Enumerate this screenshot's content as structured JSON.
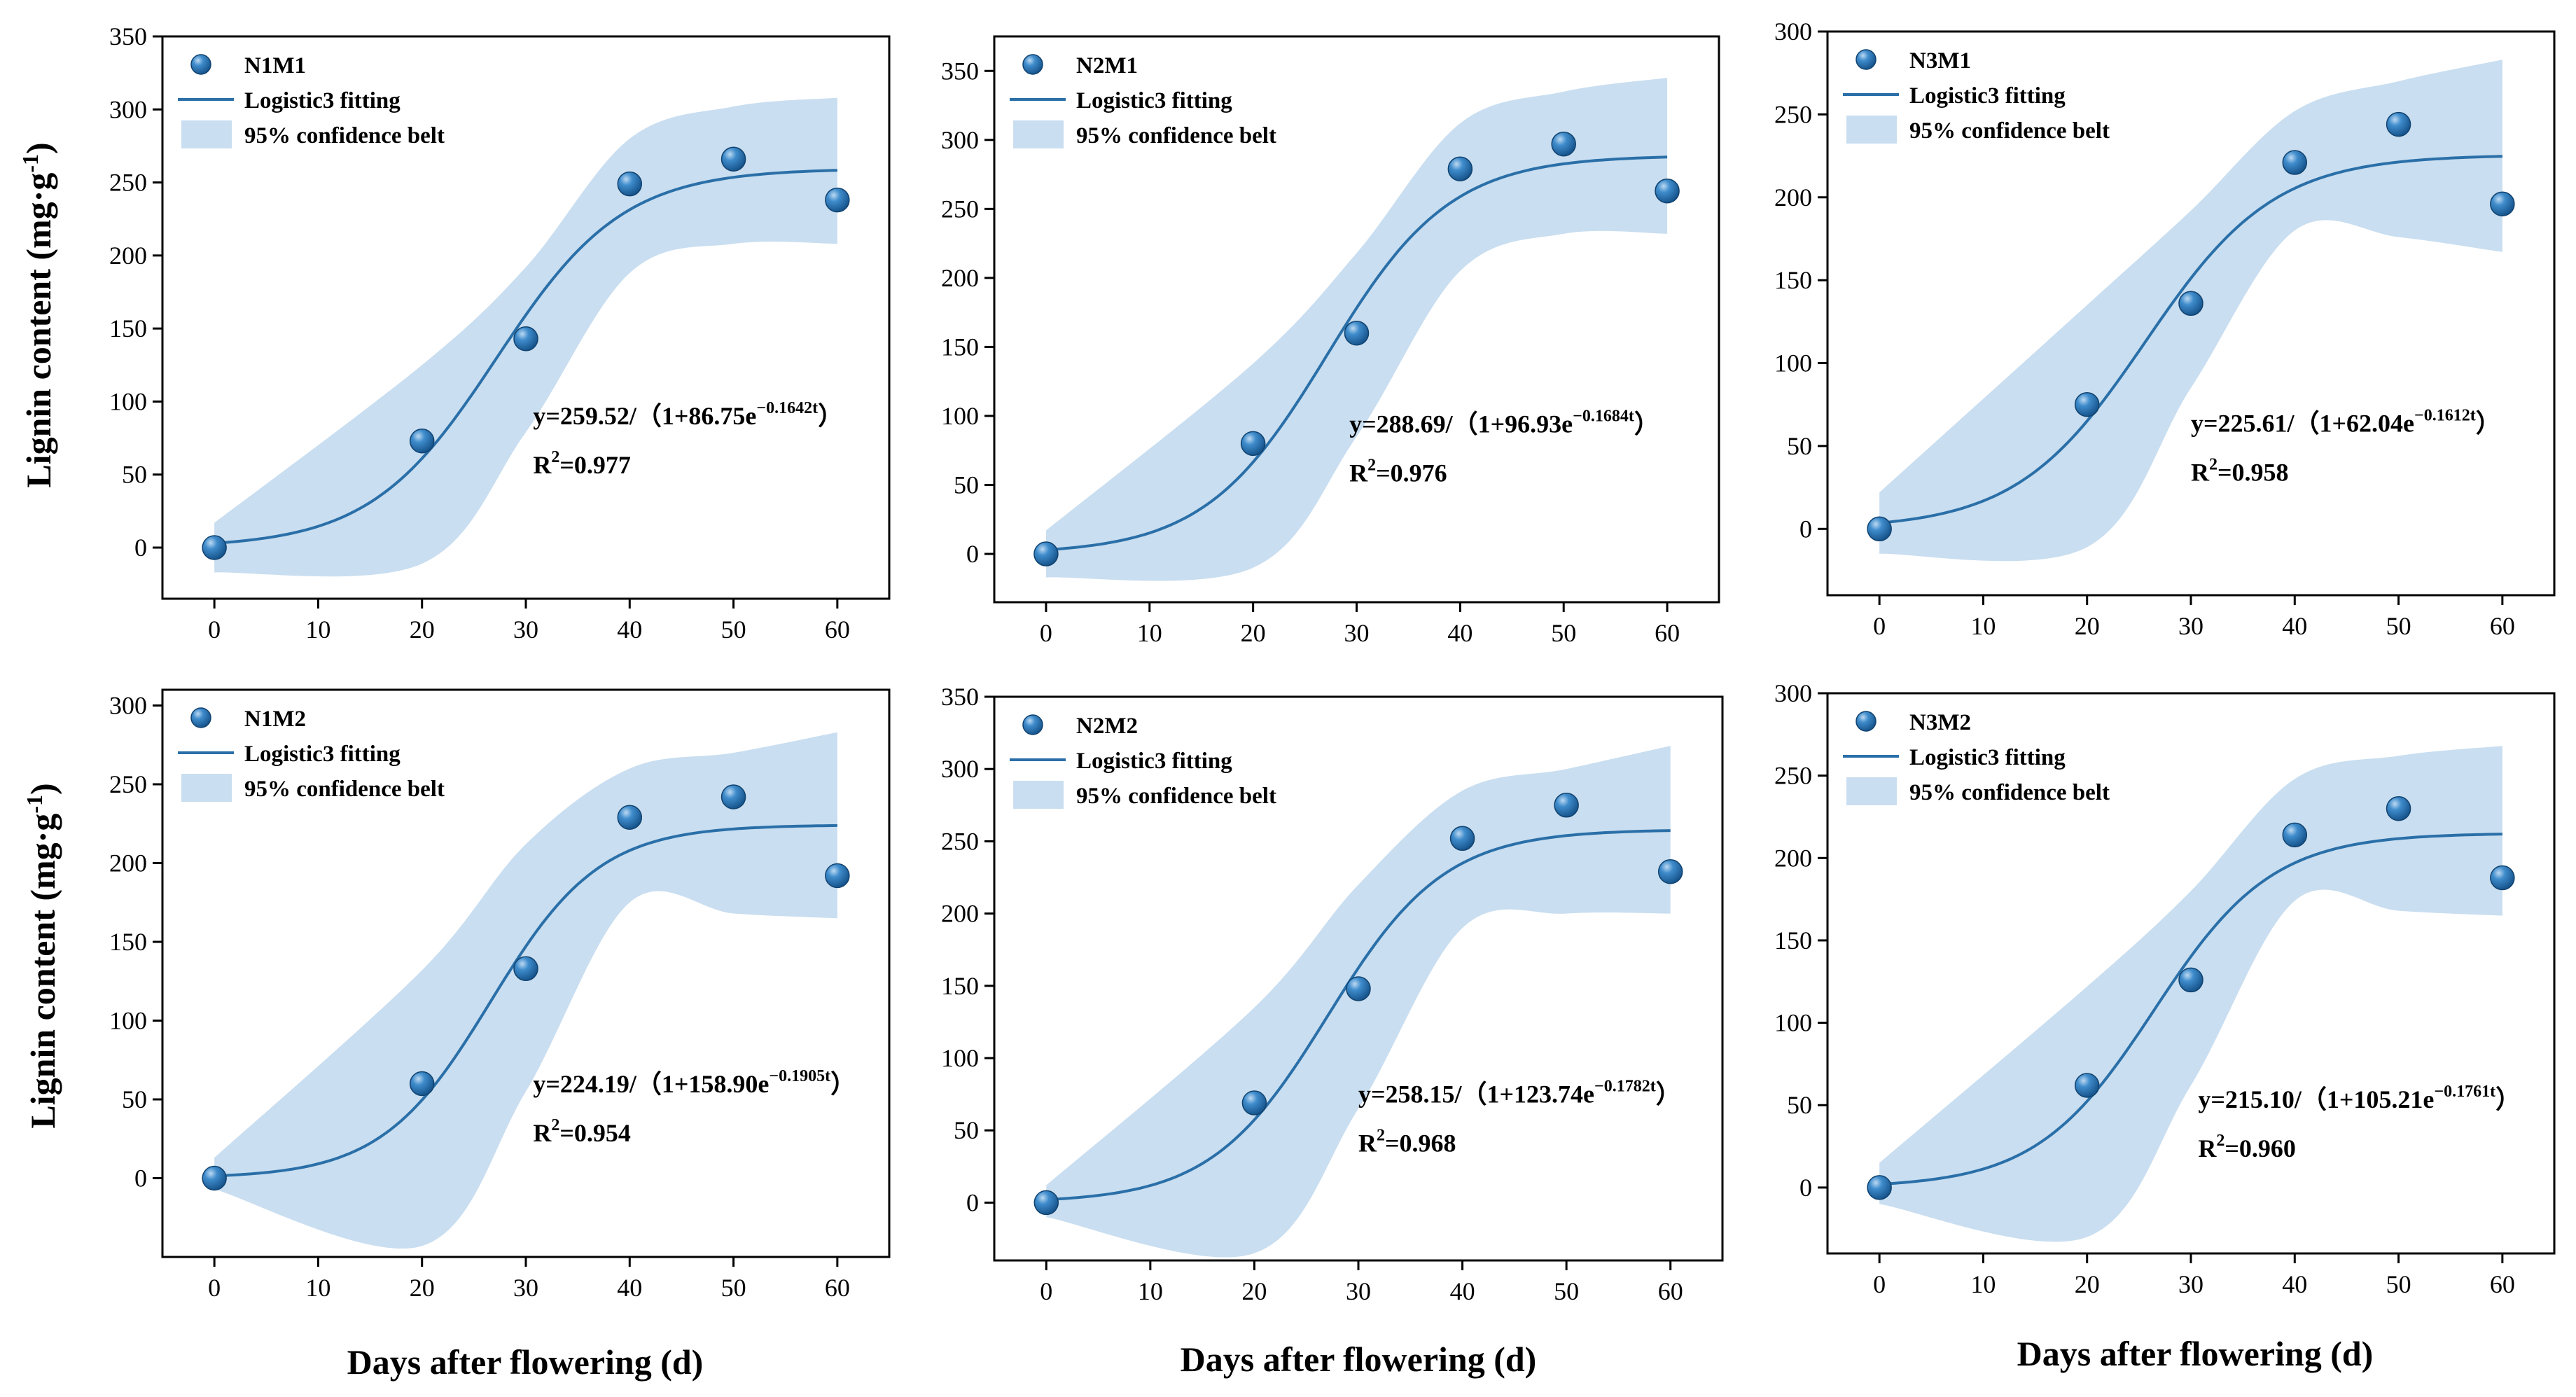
{
  "figure": {
    "xlabel": "Days after flowering (d)",
    "ylabel_main": "Lignin content (mg·g",
    "ylabel_sup": "-1",
    "ylabel_close": ")"
  },
  "colors": {
    "point": "#1f6fb0",
    "point_highlight": "#9cc4e6",
    "fit_line": "#2a6fa8",
    "band": "#c9def0",
    "axis": "#000000"
  },
  "legend": {
    "fit_label": "Logistic3 fitting",
    "band_label": "95% confidence belt"
  },
  "chart_data": [
    {
      "type": "scatter",
      "name": "N1M1",
      "x": [
        0,
        20,
        30,
        40,
        50,
        60
      ],
      "y": [
        0,
        73,
        143,
        249,
        266,
        238
      ],
      "fit": {
        "A": 259.52,
        "B": 86.75,
        "k": 0.1642
      },
      "band": {
        "lower": [
          -17,
          -11,
          79,
          188,
          208,
          208
        ],
        "upper": [
          17,
          125,
          192,
          280,
          302,
          308
        ]
      },
      "equation": "y=259.52/（1+86.75e",
      "exponent": "−0.1642t",
      "eq_close": "）",
      "r2_prefix": "R",
      "r2_sup": "2",
      "r2_value": "=0.977",
      "xticks": [
        0,
        10,
        20,
        30,
        40,
        50,
        60
      ],
      "yticks": [
        0,
        50,
        100,
        150,
        200,
        250,
        300,
        350
      ],
      "ylim": [
        -35,
        350
      ],
      "xlim": [
        -5,
        65
      ]
    },
    {
      "type": "scatter",
      "name": "N2M1",
      "x": [
        0,
        20,
        30,
        40,
        50,
        60
      ],
      "y": [
        0,
        80,
        160,
        279,
        297,
        263
      ],
      "fit": {
        "A": 288.69,
        "B": 96.93,
        "k": 0.1684
      },
      "band": {
        "lower": [
          -17,
          -10,
          85,
          205,
          232,
          232
        ],
        "upper": [
          17,
          138,
          218,
          312,
          335,
          345
        ]
      },
      "equation": "y=288.69/（1+96.93e",
      "exponent": "−0.1684t",
      "eq_close": "）",
      "r2_prefix": "R",
      "r2_sup": "2",
      "r2_value": "=0.976",
      "xticks": [
        0,
        10,
        20,
        30,
        40,
        50,
        60
      ],
      "yticks": [
        0,
        50,
        100,
        150,
        200,
        250,
        300,
        350
      ],
      "ylim": [
        -35,
        375
      ],
      "xlim": [
        -5,
        65
      ]
    },
    {
      "type": "scatter",
      "name": "N3M1",
      "x": [
        0,
        20,
        30,
        40,
        50,
        60
      ],
      "y": [
        0,
        75,
        136,
        221,
        244,
        196
      ],
      "fit": {
        "A": 225.61,
        "B": 62.04,
        "k": 0.1612
      },
      "band": {
        "lower": [
          -15,
          -11,
          85,
          180,
          176,
          167
        ],
        "upper": [
          22,
          135,
          192,
          252,
          270,
          283
        ]
      },
      "equation": "y=225.61/（1+62.04e",
      "exponent": "−0.1612t",
      "eq_close": "）",
      "r2_prefix": "R",
      "r2_sup": "2",
      "r2_value": "=0.958",
      "xticks": [
        0,
        10,
        20,
        30,
        40,
        50,
        60
      ],
      "yticks": [
        0,
        50,
        100,
        150,
        200,
        250,
        300
      ],
      "ylim": [
        -40,
        300
      ],
      "xlim": [
        -5,
        65
      ]
    },
    {
      "type": "scatter",
      "name": "N1M2",
      "x": [
        0,
        20,
        30,
        40,
        50,
        60
      ],
      "y": [
        0,
        60,
        133,
        229,
        242,
        192
      ],
      "fit": {
        "A": 224.19,
        "B": 158.9,
        "k": 0.1905
      },
      "band": {
        "lower": [
          -7,
          -43,
          55,
          175,
          168,
          165
        ],
        "upper": [
          13,
          132,
          212,
          260,
          270,
          283
        ]
      },
      "equation": "y=224.19/（1+158.90e",
      "exponent": "−0.1905t",
      "eq_close": "）",
      "r2_prefix": "R",
      "r2_sup": "2",
      "r2_value": "=0.954",
      "xticks": [
        0,
        10,
        20,
        30,
        40,
        50,
        60
      ],
      "yticks": [
        0,
        50,
        100,
        150,
        200,
        250,
        300
      ],
      "ylim": [
        -50,
        310
      ],
      "xlim": [
        -5,
        65
      ]
    },
    {
      "type": "scatter",
      "name": "N2M2",
      "x": [
        0,
        20,
        30,
        40,
        50,
        60
      ],
      "y": [
        0,
        69,
        148,
        252,
        275,
        229
      ],
      "fit": {
        "A": 258.15,
        "B": 123.74,
        "k": 0.1782
      },
      "band": {
        "lower": [
          -10,
          -35,
          65,
          190,
          200,
          200
        ],
        "upper": [
          12,
          135,
          220,
          285,
          300,
          316
        ]
      },
      "equation": "y=258.15/（1+123.74e",
      "exponent": "−0.1782t",
      "eq_close": "）",
      "r2_prefix": "R",
      "r2_sup": "2",
      "r2_value": "=0.968",
      "xticks": [
        0,
        10,
        20,
        30,
        40,
        50,
        60
      ],
      "yticks": [
        0,
        50,
        100,
        150,
        200,
        250,
        300,
        350
      ],
      "ylim": [
        -40,
        350
      ],
      "xlim": [
        -5,
        65
      ]
    },
    {
      "type": "scatter",
      "name": "N3M2",
      "x": [
        0,
        20,
        30,
        40,
        50,
        60
      ],
      "y": [
        0,
        62,
        126,
        214,
        230,
        188
      ],
      "fit": {
        "A": 215.1,
        "B": 105.21,
        "k": 0.1761
      },
      "band": {
        "lower": [
          -10,
          -30,
          62,
          174,
          168,
          165
        ],
        "upper": [
          15,
          122,
          180,
          248,
          262,
          268
        ]
      },
      "equation": "y=215.10/（1+105.21e",
      "exponent": "−0.1761t",
      "eq_close": "）",
      "r2_prefix": "R",
      "r2_sup": "2",
      "r2_value": "=0.960",
      "xticks": [
        0,
        10,
        20,
        30,
        40,
        50,
        60
      ],
      "yticks": [
        0,
        50,
        100,
        150,
        200,
        250,
        300
      ],
      "ylim": [
        -40,
        300
      ],
      "xlim": [
        -5,
        65
      ]
    }
  ]
}
